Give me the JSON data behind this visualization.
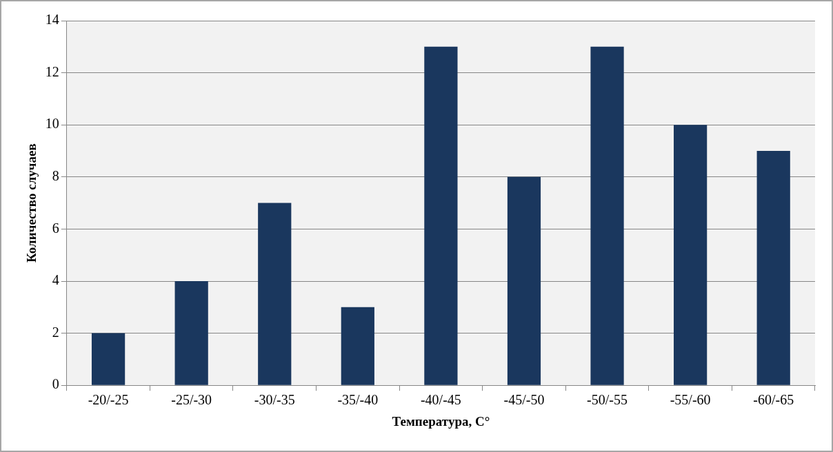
{
  "chart_data": {
    "type": "bar",
    "xlabel": "Температура, С°",
    "ylabel": "Количество случаев",
    "categories": [
      "-20/-25",
      "-25/-30",
      "-30/-35",
      "-35/-40",
      "-40/-45",
      "-45/-50",
      "-50/-55",
      "-55/-60",
      "-60/-65"
    ],
    "values": [
      2,
      4,
      7,
      3,
      13,
      8,
      13,
      10,
      9
    ],
    "color": "#1a375e",
    "ylim": [
      0,
      14
    ],
    "yticks": [
      0,
      2,
      4,
      6,
      8,
      10,
      12,
      14
    ],
    "grid": "y",
    "legend": false
  }
}
